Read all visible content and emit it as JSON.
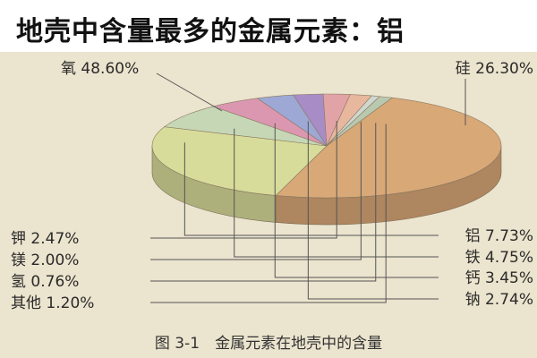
{
  "page_title": "地壳中含量最多的金属元素：铝",
  "chart_data": {
    "type": "pie",
    "title": "",
    "caption": "图 3-1　金属元素在地壳中的含量",
    "slices": [
      {
        "name": "氧",
        "value": 48.6,
        "label": "氧 48.60%",
        "color": "#d9a877"
      },
      {
        "name": "硅",
        "value": 26.3,
        "label": "硅 26.30%",
        "color": "#d8dc9a"
      },
      {
        "name": "铝",
        "value": 7.73,
        "label": "铝 7.73%",
        "color": "#c6d7b6"
      },
      {
        "name": "铁",
        "value": 4.75,
        "label": "铁 4.75%",
        "color": "#dc97b0"
      },
      {
        "name": "钙",
        "value": 3.45,
        "label": "钙 3.45%",
        "color": "#9ea8d4"
      },
      {
        "name": "钠",
        "value": 2.74,
        "label": "钠 2.74%",
        "color": "#a88cc6"
      },
      {
        "name": "钾",
        "value": 2.47,
        "label": "钾 2.47%",
        "color": "#e2a3a6"
      },
      {
        "name": "镁",
        "value": 2.0,
        "label": "镁 2.00%",
        "color": "#e7b79e"
      },
      {
        "name": "氢",
        "value": 0.76,
        "label": "氢 0.76%",
        "color": "#cfd7cf"
      },
      {
        "name": "其他",
        "value": 1.2,
        "label": "其他 1.20%",
        "color": "#b9c9b0"
      }
    ]
  }
}
